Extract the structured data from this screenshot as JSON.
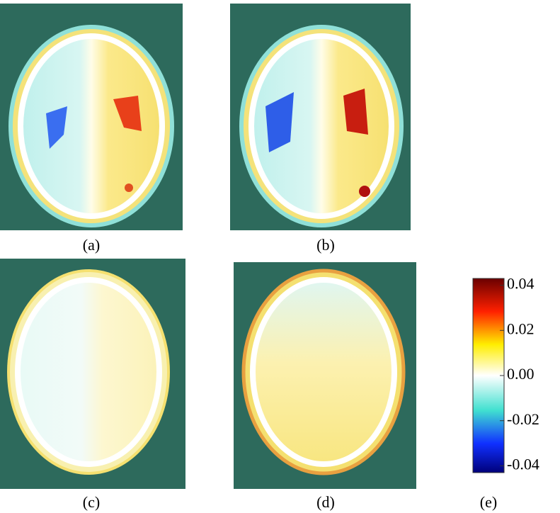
{
  "panels": [
    {
      "label": "(a)"
    },
    {
      "label": "(b)"
    },
    {
      "label": "(c)"
    },
    {
      "label": "(d)"
    }
  ],
  "colorbar": {
    "label": "(e)",
    "lim": [
      -0.043,
      0.043
    ],
    "ticks": [
      0.04,
      0.02,
      {
        "value": 0,
        "label": "0.00"
      },
      -0.02,
      -0.04
    ]
  }
}
